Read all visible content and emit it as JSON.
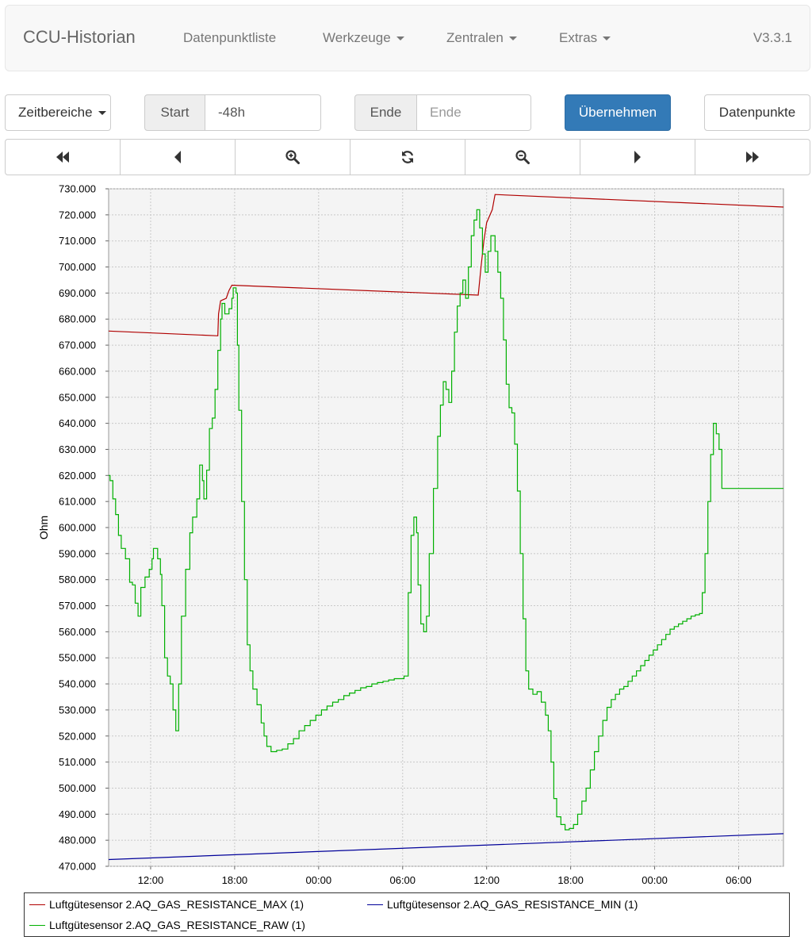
{
  "navbar": {
    "brand": "CCU-Historian",
    "items": [
      {
        "label": "Datenpunktliste",
        "dropdown": false
      },
      {
        "label": "Werkzeuge",
        "dropdown": true
      },
      {
        "label": "Zentralen",
        "dropdown": true
      },
      {
        "label": "Extras",
        "dropdown": true
      }
    ],
    "version": "V3.3.1"
  },
  "toolbar": {
    "timeranges_label": "Zeitbereiche",
    "start_label": "Start",
    "start_value": "-48h",
    "end_label": "Ende",
    "end_placeholder": "Ende",
    "apply_label": "Übernehmen",
    "datapoints_label": "Datenpunkte"
  },
  "nav_buttons": [
    {
      "name": "fast-backward",
      "icon": "fast-backward-icon"
    },
    {
      "name": "backward",
      "icon": "backward-icon"
    },
    {
      "name": "zoom-in",
      "icon": "zoom-in-icon"
    },
    {
      "name": "refresh",
      "icon": "refresh-icon"
    },
    {
      "name": "zoom-out",
      "icon": "zoom-out-icon"
    },
    {
      "name": "forward",
      "icon": "forward-icon"
    },
    {
      "name": "fast-forward",
      "icon": "fast-forward-icon"
    }
  ],
  "chart_data": {
    "type": "line",
    "ylabel": "Ohm",
    "ylim": [
      470000,
      730000
    ],
    "yticks": [
      "730.000",
      "720.000",
      "710.000",
      "700.000",
      "690.000",
      "680.000",
      "670.000",
      "660.000",
      "650.000",
      "640.000",
      "630.000",
      "620.000",
      "610.000",
      "600.000",
      "590.000",
      "580.000",
      "570.000",
      "560.000",
      "550.000",
      "540.000",
      "530.000",
      "520.000",
      "510.000",
      "500.000",
      "490.000",
      "480.000",
      "470.000"
    ],
    "xlim_hours": [
      9,
      57.2
    ],
    "xticks": [
      {
        "h": 12,
        "label": "12:00"
      },
      {
        "h": 18,
        "label": "18:00"
      },
      {
        "h": 24,
        "label": "00:00"
      },
      {
        "h": 30,
        "label": "06:00"
      },
      {
        "h": 36,
        "label": "12:00"
      },
      {
        "h": 42,
        "label": "18:00"
      },
      {
        "h": 48,
        "label": "00:00"
      },
      {
        "h": 54,
        "label": "06:00"
      }
    ],
    "grid": true,
    "series": [
      {
        "name": "Luftgütesensor 2.AQ_GAS_RESISTANCE_MAX (1)",
        "color": "#b00000",
        "points": [
          [
            9.0,
            675400
          ],
          [
            16.8,
            673600
          ],
          [
            16.85,
            682000
          ],
          [
            17.0,
            687000
          ],
          [
            17.4,
            688000
          ],
          [
            17.6,
            691000
          ],
          [
            17.8,
            693000
          ],
          [
            35.4,
            689200
          ],
          [
            35.6,
            700000
          ],
          [
            35.8,
            710000
          ],
          [
            36.0,
            717000
          ],
          [
            36.4,
            722000
          ],
          [
            36.6,
            727800
          ],
          [
            57.2,
            723000
          ]
        ]
      },
      {
        "name": "Luftgütesensor 2.AQ_GAS_RESISTANCE_MIN (1)",
        "color": "#000099",
        "points": [
          [
            9.0,
            472600
          ],
          [
            57.2,
            482500
          ]
        ]
      },
      {
        "name": "Luftgütesensor 2.AQ_GAS_RESISTANCE_RAW (1)",
        "color": "#00b000",
        "points": [
          [
            9.0,
            620000
          ],
          [
            9.1,
            618000
          ],
          [
            9.3,
            611000
          ],
          [
            9.5,
            605000
          ],
          [
            9.7,
            597000
          ],
          [
            9.9,
            592000
          ],
          [
            10.2,
            588000
          ],
          [
            10.5,
            579000
          ],
          [
            10.7,
            578000
          ],
          [
            10.9,
            571000
          ],
          [
            11.1,
            566000
          ],
          [
            11.3,
            577000
          ],
          [
            11.6,
            581000
          ],
          [
            11.9,
            584000
          ],
          [
            12.1,
            588000
          ],
          [
            12.2,
            592000
          ],
          [
            12.5,
            588000
          ],
          [
            12.7,
            582000
          ],
          [
            12.8,
            570000
          ],
          [
            13.0,
            550000
          ],
          [
            13.2,
            543000
          ],
          [
            13.4,
            540000
          ],
          [
            13.6,
            530000
          ],
          [
            13.8,
            522000
          ],
          [
            14.0,
            540000
          ],
          [
            14.2,
            566000
          ],
          [
            14.5,
            584000
          ],
          [
            14.8,
            598000
          ],
          [
            15.0,
            604000
          ],
          [
            15.3,
            611000
          ],
          [
            15.5,
            624000
          ],
          [
            15.7,
            618000
          ],
          [
            15.8,
            611000
          ],
          [
            16.0,
            622000
          ],
          [
            16.2,
            638000
          ],
          [
            16.4,
            642000
          ],
          [
            16.6,
            653000
          ],
          [
            16.8,
            668000
          ],
          [
            17.0,
            680000
          ],
          [
            17.1,
            686000
          ],
          [
            17.3,
            682000
          ],
          [
            17.6,
            684000
          ],
          [
            17.8,
            688000
          ],
          [
            17.9,
            692000
          ],
          [
            18.1,
            690000
          ],
          [
            18.2,
            670000
          ],
          [
            18.3,
            645000
          ],
          [
            18.5,
            610000
          ],
          [
            18.7,
            580000
          ],
          [
            18.9,
            555000
          ],
          [
            19.1,
            545000
          ],
          [
            19.3,
            538000
          ],
          [
            19.6,
            532000
          ],
          [
            19.9,
            525000
          ],
          [
            20.1,
            520000
          ],
          [
            20.3,
            516000
          ],
          [
            20.6,
            514000
          ],
          [
            21.0,
            514500
          ],
          [
            21.4,
            515000
          ],
          [
            21.8,
            517000
          ],
          [
            22.2,
            519000
          ],
          [
            22.6,
            522000
          ],
          [
            23.0,
            524000
          ],
          [
            23.4,
            526000
          ],
          [
            23.8,
            528000
          ],
          [
            24.2,
            530000
          ],
          [
            24.6,
            531500
          ],
          [
            25.0,
            533000
          ],
          [
            25.4,
            534000
          ],
          [
            25.8,
            535500
          ],
          [
            26.2,
            536500
          ],
          [
            26.6,
            537500
          ],
          [
            27.0,
            538500
          ],
          [
            27.4,
            539000
          ],
          [
            27.8,
            540000
          ],
          [
            28.2,
            540500
          ],
          [
            28.6,
            541000
          ],
          [
            29.0,
            541500
          ],
          [
            29.4,
            542000
          ],
          [
            29.8,
            542000
          ],
          [
            30.1,
            543000
          ],
          [
            30.4,
            575000
          ],
          [
            30.6,
            597000
          ],
          [
            30.8,
            604000
          ],
          [
            31.0,
            598000
          ],
          [
            31.1,
            578000
          ],
          [
            31.3,
            563000
          ],
          [
            31.5,
            560000
          ],
          [
            31.7,
            566000
          ],
          [
            31.9,
            590000
          ],
          [
            32.2,
            615000
          ],
          [
            32.5,
            635000
          ],
          [
            32.7,
            647000
          ],
          [
            32.9,
            656000
          ],
          [
            33.1,
            653000
          ],
          [
            33.3,
            648000
          ],
          [
            33.5,
            660000
          ],
          [
            33.7,
            675000
          ],
          [
            33.9,
            685000
          ],
          [
            34.1,
            690000
          ],
          [
            34.3,
            695000
          ],
          [
            34.5,
            688000
          ],
          [
            34.7,
            700000
          ],
          [
            34.9,
            712000
          ],
          [
            35.1,
            718000
          ],
          [
            35.3,
            722000
          ],
          [
            35.5,
            715000
          ],
          [
            35.7,
            705000
          ],
          [
            35.9,
            698000
          ],
          [
            36.1,
            706000
          ],
          [
            36.3,
            712000
          ],
          [
            36.6,
            706000
          ],
          [
            36.8,
            698000
          ],
          [
            37.0,
            688000
          ],
          [
            37.2,
            672000
          ],
          [
            37.4,
            655000
          ],
          [
            37.6,
            646000
          ],
          [
            37.8,
            644000
          ],
          [
            38.0,
            632000
          ],
          [
            38.2,
            614000
          ],
          [
            38.4,
            590000
          ],
          [
            38.6,
            565000
          ],
          [
            38.8,
            545000
          ],
          [
            39.0,
            538000
          ],
          [
            39.3,
            536000
          ],
          [
            39.6,
            537000
          ],
          [
            39.9,
            533000
          ],
          [
            40.2,
            528000
          ],
          [
            40.4,
            522000
          ],
          [
            40.6,
            510000
          ],
          [
            40.8,
            496000
          ],
          [
            41.0,
            489000
          ],
          [
            41.3,
            486000
          ],
          [
            41.6,
            484000
          ],
          [
            41.9,
            484500
          ],
          [
            42.2,
            486000
          ],
          [
            42.5,
            490000
          ],
          [
            42.8,
            495000
          ],
          [
            43.1,
            500000
          ],
          [
            43.4,
            507000
          ],
          [
            43.7,
            514000
          ],
          [
            44.0,
            520000
          ],
          [
            44.3,
            526000
          ],
          [
            44.6,
            531000
          ],
          [
            44.9,
            534000
          ],
          [
            45.2,
            536000
          ],
          [
            45.5,
            538000
          ],
          [
            45.8,
            539000
          ],
          [
            46.1,
            541000
          ],
          [
            46.4,
            543000
          ],
          [
            46.7,
            545000
          ],
          [
            47.0,
            547000
          ],
          [
            47.3,
            549000
          ],
          [
            47.6,
            551000
          ],
          [
            47.9,
            553000
          ],
          [
            48.2,
            555000
          ],
          [
            48.5,
            557000
          ],
          [
            48.8,
            559000
          ],
          [
            49.1,
            561000
          ],
          [
            49.4,
            562000
          ],
          [
            49.7,
            563000
          ],
          [
            50.0,
            564000
          ],
          [
            50.3,
            565000
          ],
          [
            50.6,
            566000
          ],
          [
            50.9,
            566500
          ],
          [
            51.2,
            567000
          ],
          [
            51.4,
            575000
          ],
          [
            51.6,
            590000
          ],
          [
            51.8,
            610000
          ],
          [
            52.0,
            628000
          ],
          [
            52.2,
            640000
          ],
          [
            52.4,
            636000
          ],
          [
            52.6,
            630000
          ],
          [
            52.8,
            615000
          ],
          [
            57.2,
            615000
          ]
        ]
      }
    ]
  }
}
